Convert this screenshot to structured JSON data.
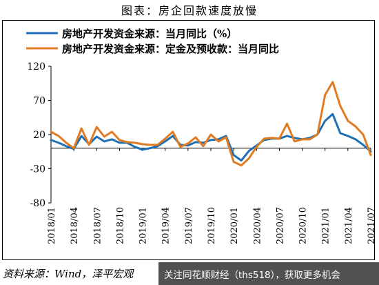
{
  "page_title": "图表：房企回款速度放慢",
  "source_note": "资料来源：Wind，泽平宏观",
  "overlay_text": "关注同花顺财经（ths518），获取更多机会",
  "chart_data": {
    "type": "line",
    "title": "图表：房企回款速度放慢",
    "ylim": [
      -80,
      120
    ],
    "yticks": [
      120,
      70,
      20,
      -30,
      -80
    ],
    "xtick_labels": [
      "2018/01",
      "2018/04",
      "2018/07",
      "2018/10",
      "2019/01",
      "2019/04",
      "2019/07",
      "2019/10",
      "2020/01",
      "2020/04",
      "2020/07",
      "2020/10",
      "2021/01",
      "2021/04",
      "2021/07"
    ],
    "x": [
      "2018/01",
      "2018/02",
      "2018/03",
      "2018/04",
      "2018/05",
      "2018/06",
      "2018/07",
      "2018/08",
      "2018/09",
      "2018/10",
      "2018/11",
      "2018/12",
      "2019/01",
      "2019/02",
      "2019/03",
      "2019/04",
      "2019/05",
      "2019/06",
      "2019/07",
      "2019/08",
      "2019/09",
      "2019/10",
      "2019/11",
      "2019/12",
      "2020/01",
      "2020/02",
      "2020/03",
      "2020/04",
      "2020/05",
      "2020/06",
      "2020/07",
      "2020/08",
      "2020/09",
      "2020/10",
      "2020/11",
      "2020/12",
      "2021/01",
      "2021/02",
      "2021/03",
      "2021/04",
      "2021/05",
      "2021/06",
      "2021/07"
    ],
    "series": [
      {
        "name": "房地产开发资金来源：当月同比（%）",
        "color": "#1f6fb4",
        "values": [
          12,
          8,
          3,
          -1,
          18,
          6,
          17,
          10,
          13,
          8,
          8,
          2,
          -2,
          0,
          3,
          10,
          18,
          5,
          4,
          9,
          8,
          12,
          13,
          18,
          -10,
          -18,
          -4,
          4,
          12,
          14,
          14,
          18,
          15,
          13,
          15,
          20,
          40,
          50,
          22,
          18,
          13,
          5,
          -5
        ]
      },
      {
        "name": "房地产开发资金来源：定金及预收款：当月同比",
        "color": "#e07b22",
        "values": [
          24,
          18,
          8,
          0,
          29,
          5,
          31,
          17,
          24,
          12,
          9,
          8,
          6,
          5,
          5,
          14,
          24,
          2,
          7,
          16,
          3,
          20,
          10,
          16,
          -20,
          -25,
          -15,
          2,
          14,
          15,
          14,
          36,
          10,
          13,
          13,
          20,
          78,
          97,
          62,
          40,
          32,
          20,
          -10
        ]
      }
    ],
    "legend": "top"
  }
}
